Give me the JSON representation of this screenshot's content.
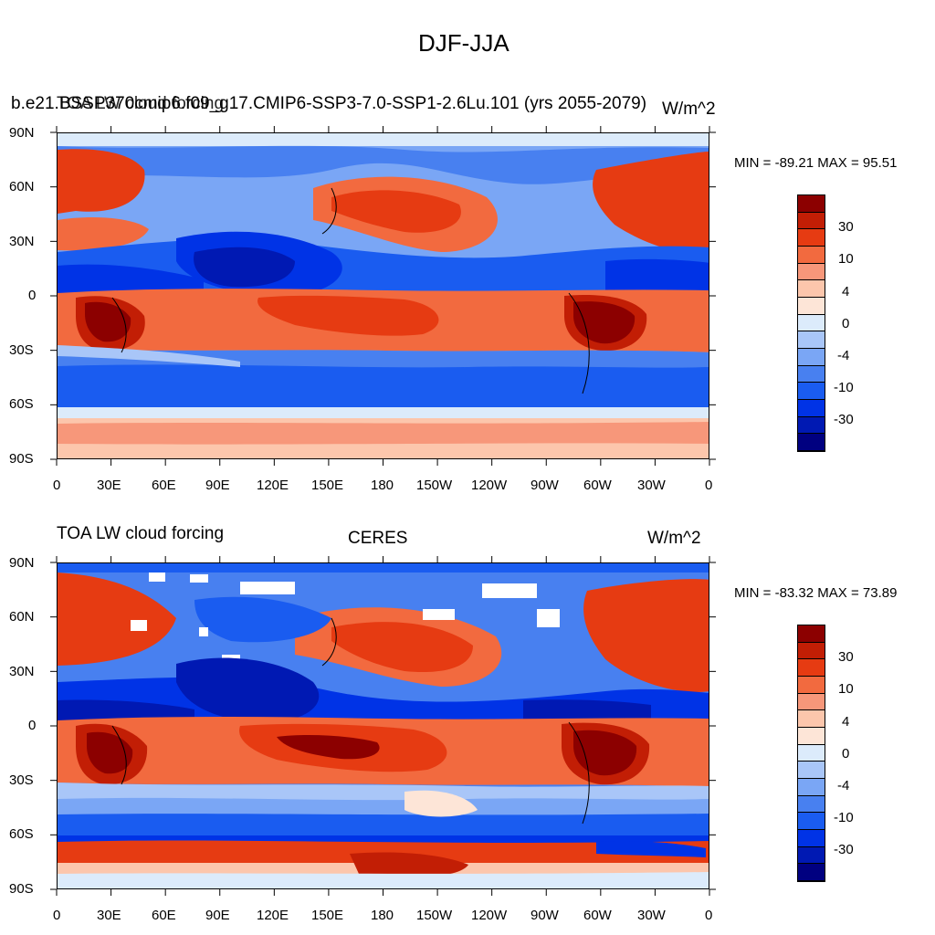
{
  "page_title": "DJF-JJA",
  "colors": {
    "levels": [
      "#000080",
      "#0019b3",
      "#0033e6",
      "#1a5cf0",
      "#4880f0",
      "#7aa6f5",
      "#a9c6f8",
      "#dcebfb",
      "#fde5d7",
      "#fcc6ac",
      "#f7977a",
      "#f26a3f",
      "#e63b12",
      "#c21e05",
      "#8c0000"
    ]
  },
  "colorbar": {
    "tick_labels": [
      "30",
      "10",
      "4",
      "0",
      "-4",
      "-10",
      "-30"
    ]
  },
  "axes": {
    "lat_labels": [
      "90N",
      "60N",
      "30N",
      "0",
      "30S",
      "60S",
      "90S"
    ],
    "lon_labels": [
      "0",
      "30E",
      "60E",
      "90E",
      "120E",
      "150E",
      "180",
      "150W",
      "120W",
      "90W",
      "60W",
      "30W",
      "0"
    ]
  },
  "panels": [
    {
      "left_title": "b.e21.BSSP370cmip6.f09_g17.CMIP6-SSP3-7.0-SSP1-2.6Lu.101 (yrs 2055-2079)",
      "overlay_title": "TOA LW cloud forcing",
      "units": "W/m^2",
      "stats": "MIN = -89.21 MAX =  95.51"
    },
    {
      "left_title": "TOA LW cloud forcing",
      "center_title": "CERES",
      "units": "W/m^2",
      "stats": "MIN = -83.32 MAX =  73.89"
    }
  ]
}
